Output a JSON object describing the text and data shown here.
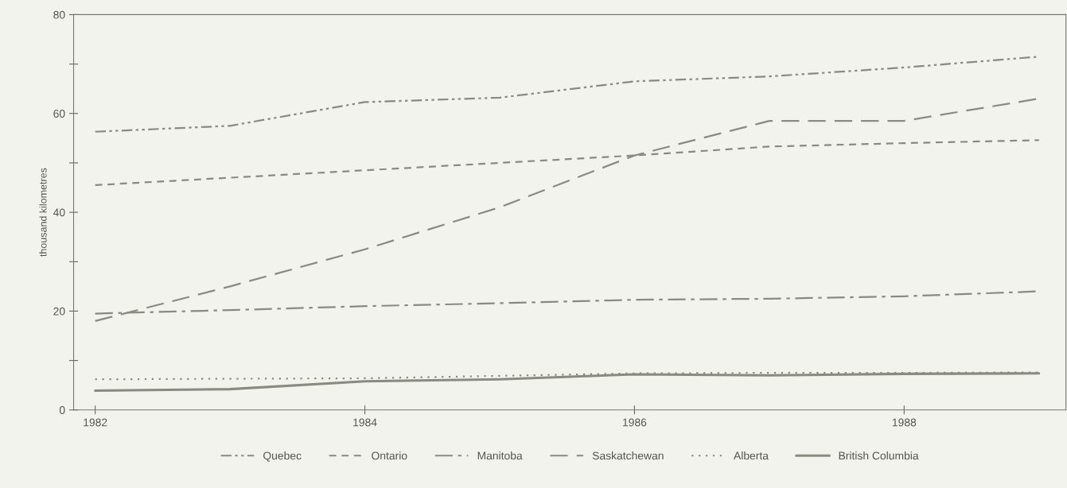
{
  "chart_data": {
    "type": "line",
    "ylabel": "thousand kilometres",
    "x": [
      1982,
      1983,
      1984,
      1985,
      1986,
      1987,
      1988,
      1989
    ],
    "xlim": [
      1981.84,
      1989.2
    ],
    "xticks": [
      1982,
      1984,
      1986,
      1988
    ],
    "ylim": [
      0,
      80
    ],
    "yticks": [
      0,
      {
        "value": 10,
        "label": null
      },
      20,
      {
        "value": 30,
        "label": null
      },
      40,
      {
        "value": 50,
        "label": null
      },
      60,
      {
        "value": 70,
        "label": null
      },
      80
    ],
    "grid": false,
    "legend": "bottom",
    "series": [
      {
        "name": "Quebec",
        "color": "#8a8a80",
        "line_style": "dashdotdot",
        "values": [
          56.3,
          57.5,
          62.3,
          63.2,
          66.5,
          67.5,
          69.3,
          71.5
        ]
      },
      {
        "name": "Ontario",
        "color": "#8a8a80",
        "line_style": "dashed",
        "values": [
          45.5,
          47,
          48.5,
          50,
          51.5,
          53.3,
          54,
          54.6
        ]
      },
      {
        "name": "Manitoba",
        "color": "#8a8a80",
        "line_style": "dashdot",
        "values": [
          19.5,
          20.2,
          21,
          21.6,
          22.3,
          22.5,
          23,
          24
        ]
      },
      {
        "name": "Saskatchewan",
        "color": "#8a8a80",
        "line_style": "longdash",
        "values": [
          18,
          25,
          32.5,
          41,
          51.5,
          58.5,
          58.5,
          63
        ]
      },
      {
        "name": "Alberta",
        "color": "#8a8a80",
        "line_style": "dotted",
        "values": [
          6.2,
          6.3,
          6.4,
          6.9,
          7.4,
          7.5,
          7.5,
          7.6
        ]
      },
      {
        "name": "British Columbia",
        "color": "#8a8a80",
        "line_style": "solid",
        "values": [
          3.9,
          4.2,
          5.8,
          6.2,
          7.2,
          7.0,
          7.3,
          7.4
        ]
      }
    ]
  }
}
